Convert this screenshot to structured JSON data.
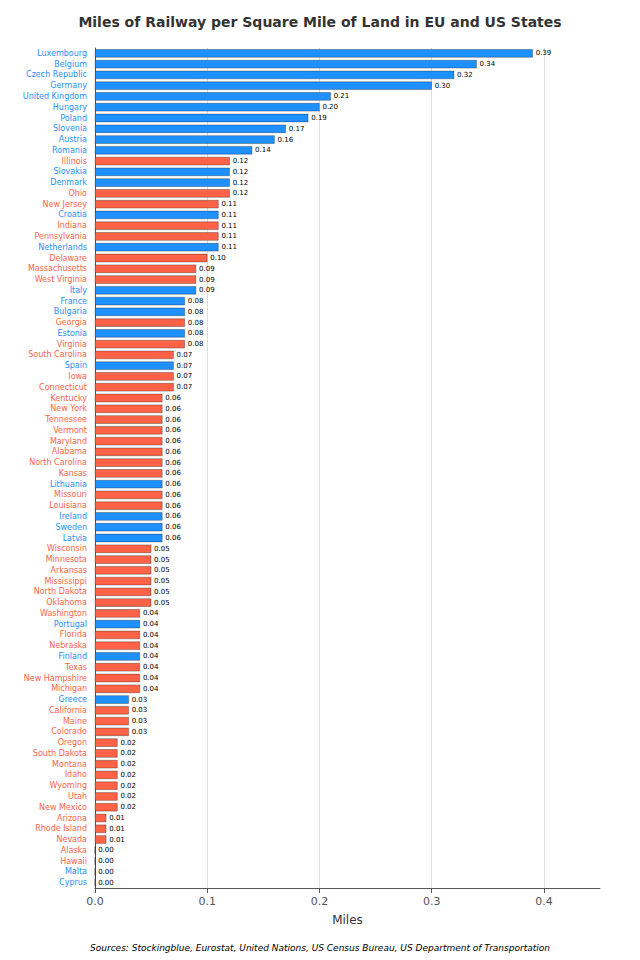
{
  "chart_data": {
    "type": "bar",
    "orientation": "horizontal",
    "title": "Miles of Railway per Square Mile of Land in EU and US States",
    "xlabel": "Miles",
    "annotations": [
      "Sources: Stockingblue, Eurostat, United Nations, US Census Bureau, US Department of Transportation"
    ],
    "categories": [
      "Luxembourg",
      "Belgium",
      "Czech Republic",
      "Germany",
      "United Kingdom",
      "Hungary",
      "Poland",
      "Slovenia",
      "Austria",
      "Romania",
      "Illinois",
      "Slovakia",
      "Denmark",
      "Ohio",
      "New Jersey",
      "Croatia",
      "Indiana",
      "Pennsylvania",
      "Netherlands",
      "Delaware",
      "Massachusetts",
      "West Virginia",
      "Italy",
      "France",
      "Bulgaria",
      "Georgia",
      "Estonia",
      "Virginia",
      "South Carolina",
      "Spain",
      "Iowa",
      "Connecticut",
      "Kentucky",
      "New York",
      "Tennessee",
      "Vermont",
      "Maryland",
      "Alabama",
      "North Carolina",
      "Kansas",
      "Lithuania",
      "Missouri",
      "Louisiana",
      "Ireland",
      "Sweden",
      "Latvia",
      "Wisconsin",
      "Minnesota",
      "Arkansas",
      "Mississippi",
      "North Dakota",
      "Oklahoma",
      "Washington",
      "Portugal",
      "Florida",
      "Nebraska",
      "Finland",
      "Texas",
      "New Hampshire",
      "Michigan",
      "Greece",
      "California",
      "Maine",
      "Colorado",
      "Oregon",
      "South Dakota",
      "Montana",
      "Idaho",
      "Wyoming",
      "Utah",
      "New Mexico",
      "Arizona",
      "Rhode Island",
      "Nevada",
      "Alaska",
      "Hawaii",
      "Malta",
      "Cyprus"
    ],
    "values": [
      0.39,
      0.34,
      0.32,
      0.3,
      0.21,
      0.2,
      0.19,
      0.17,
      0.16,
      0.14,
      0.12,
      0.12,
      0.12,
      0.12,
      0.11,
      0.11,
      0.11,
      0.11,
      0.11,
      0.1,
      0.09,
      0.09,
      0.09,
      0.08,
      0.08,
      0.08,
      0.08,
      0.08,
      0.07,
      0.07,
      0.07,
      0.07,
      0.06,
      0.06,
      0.06,
      0.06,
      0.06,
      0.06,
      0.06,
      0.06,
      0.06,
      0.06,
      0.06,
      0.06,
      0.06,
      0.06,
      0.05,
      0.05,
      0.05,
      0.05,
      0.05,
      0.05,
      0.04,
      0.04,
      0.04,
      0.04,
      0.04,
      0.04,
      0.04,
      0.04,
      0.03,
      0.03,
      0.03,
      0.03,
      0.02,
      0.02,
      0.02,
      0.02,
      0.02,
      0.02,
      0.02,
      0.01,
      0.01,
      0.01,
      0.0,
      0.0,
      0.0,
      0.0
    ],
    "value_labels": [
      "0.39",
      "0.34",
      "0.32",
      "0.30",
      "0.21",
      "0.20",
      "0.19",
      "0.17",
      "0.16",
      "0.14",
      "0.12",
      "0.12",
      "0.12",
      "0.12",
      "0.11",
      "0.11",
      "0.11",
      "0.11",
      "0.11",
      "0.10",
      "0.09",
      "0.09",
      "0.09",
      "0.08",
      "0.08",
      "0.08",
      "0.08",
      "0.08",
      "0.07",
      "0.07",
      "0.07",
      "0.07",
      "0.06",
      "0.06",
      "0.06",
      "0.06",
      "0.06",
      "0.06",
      "0.06",
      "0.06",
      "0.06",
      "0.06",
      "0.06",
      "0.06",
      "0.06",
      "0.06",
      "0.05",
      "0.05",
      "0.05",
      "0.05",
      "0.05",
      "0.05",
      "0.04",
      "0.04",
      "0.04",
      "0.04",
      "0.04",
      "0.04",
      "0.04",
      "0.04",
      "0.03",
      "0.03",
      "0.03",
      "0.03",
      "0.02",
      "0.02",
      "0.02",
      "0.02",
      "0.02",
      "0.02",
      "0.02",
      "0.01",
      "0.01",
      "0.01",
      "0.00",
      "0.00",
      "0.00",
      "0.00"
    ],
    "colors": [
      "#1E90FF",
      "#1E90FF",
      "#1E90FF",
      "#1E90FF",
      "#1E90FF",
      "#1E90FF",
      "#1E90FF",
      "#1E90FF",
      "#1E90FF",
      "#1E90FF",
      "#FF6347",
      "#1E90FF",
      "#1E90FF",
      "#FF6347",
      "#FF6347",
      "#1E90FF",
      "#FF6347",
      "#FF6347",
      "#1E90FF",
      "#FF6347",
      "#FF6347",
      "#FF6347",
      "#1E90FF",
      "#1E90FF",
      "#1E90FF",
      "#FF6347",
      "#1E90FF",
      "#FF6347",
      "#FF6347",
      "#1E90FF",
      "#FF6347",
      "#FF6347",
      "#FF6347",
      "#FF6347",
      "#FF6347",
      "#FF6347",
      "#FF6347",
      "#FF6347",
      "#FF6347",
      "#FF6347",
      "#1E90FF",
      "#FF6347",
      "#FF6347",
      "#1E90FF",
      "#1E90FF",
      "#1E90FF",
      "#FF6347",
      "#FF6347",
      "#FF6347",
      "#FF6347",
      "#FF6347",
      "#FF6347",
      "#FF6347",
      "#1E90FF",
      "#FF6347",
      "#FF6347",
      "#1E90FF",
      "#FF6347",
      "#FF6347",
      "#FF6347",
      "#1E90FF",
      "#FF6347",
      "#FF6347",
      "#FF6347",
      "#FF6347",
      "#FF6347",
      "#FF6347",
      "#FF6347",
      "#FF6347",
      "#FF6347",
      "#FF6347",
      "#FF6347",
      "#FF6347",
      "#FF6347",
      "#FF6347",
      "#FF6347",
      "#1E90FF",
      "#1E90FF"
    ],
    "xlim": [
      0,
      0.45
    ],
    "xticks": [
      {
        "value": 0,
        "label": "0.0"
      },
      {
        "value": 0.1,
        "label": "0.1"
      },
      {
        "value": 0.2,
        "label": "0.2"
      },
      {
        "value": 0.3,
        "label": "0.3"
      },
      {
        "value": 0.4,
        "label": "0.4"
      }
    ],
    "grid": true,
    "data_labels": true
  }
}
